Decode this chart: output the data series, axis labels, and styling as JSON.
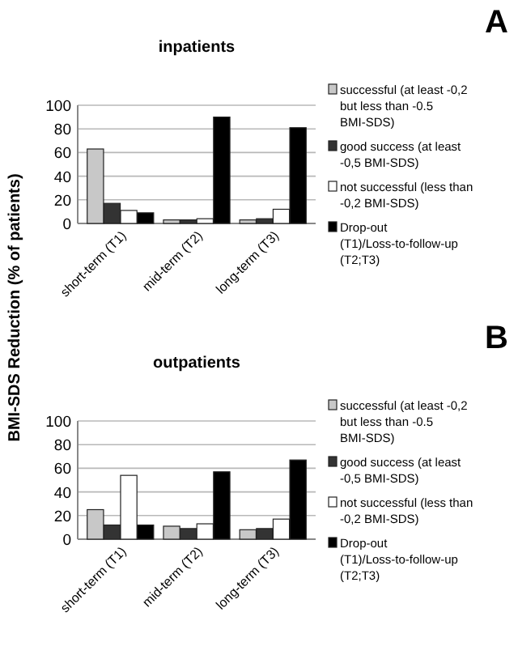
{
  "chart_data": [
    {
      "type": "bar",
      "title": "inpatients",
      "annotations": [
        "A"
      ],
      "categories": [
        "short-term (T1)",
        "mid-term (T2)",
        "long-term (T3)"
      ],
      "series": [
        {
          "name": "successful (at least -0,2 but less than -0.5 BMI-SDS)",
          "color": "#c8c8c8",
          "values": [
            63,
            3,
            3
          ]
        },
        {
          "name": "good success (at least -0,5 BMI-SDS)",
          "color": "#333333",
          "values": [
            17,
            3,
            4
          ]
        },
        {
          "name": "not successful (less than -0,2 BMI-SDS)",
          "color": "#ffffff",
          "values": [
            11,
            4,
            12
          ]
        },
        {
          "name": "Drop-out (T1)/Loss-to-follow-up (T2;T3)",
          "color": "#000000",
          "values": [
            9,
            90,
            81
          ]
        }
      ],
      "ylim": [
        0,
        100
      ],
      "yticks": [
        0,
        20,
        40,
        60,
        80,
        100
      ],
      "grid": "y",
      "legend": "right"
    },
    {
      "type": "bar",
      "title": "outpatients",
      "ylabel": "BMI-SDS Reduction (% of patients)",
      "annotations": [
        "B"
      ],
      "categories": [
        "short-term (T1)",
        "mid-term (T2)",
        "long-term (T3)"
      ],
      "series": [
        {
          "name": "successful (at least -0,2 but less than -0.5 BMI-SDS)",
          "color": "#c8c8c8",
          "values": [
            25,
            11,
            8
          ]
        },
        {
          "name": "good success (at least -0,5 BMI-SDS)",
          "color": "#333333",
          "values": [
            12,
            9,
            9
          ]
        },
        {
          "name": "not successful (less than -0,2 BMI-SDS)",
          "color": "#ffffff",
          "values": [
            54,
            13,
            17
          ]
        },
        {
          "name": "Drop-out (T1)/Loss-to-follow-up (T2;T3)",
          "color": "#000000",
          "values": [
            12,
            57,
            67
          ]
        }
      ],
      "ylim": [
        0,
        100
      ],
      "yticks": [
        0,
        20,
        40,
        60,
        80,
        100
      ],
      "grid": "y",
      "legend": "right"
    }
  ]
}
